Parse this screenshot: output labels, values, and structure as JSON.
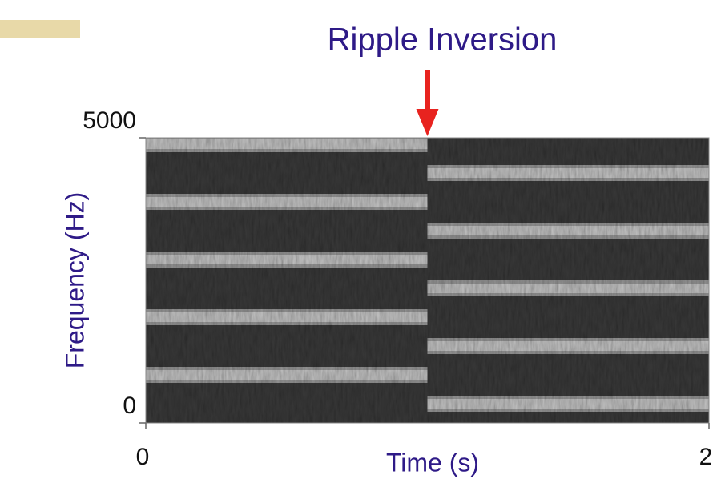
{
  "chart_data": {
    "type": "spectrogram",
    "title": "Ripple Inversion",
    "xlabel": "Time (s)",
    "ylabel": "Frequency (Hz)",
    "xlim": [
      0,
      2
    ],
    "xticks": [
      0,
      2
    ],
    "ylim": [
      0,
      5000
    ],
    "yticks": [
      0,
      5000
    ],
    "annotation": {
      "text": "Ripple Inversion",
      "x": 1,
      "color": "#e8231f"
    }
  }
}
